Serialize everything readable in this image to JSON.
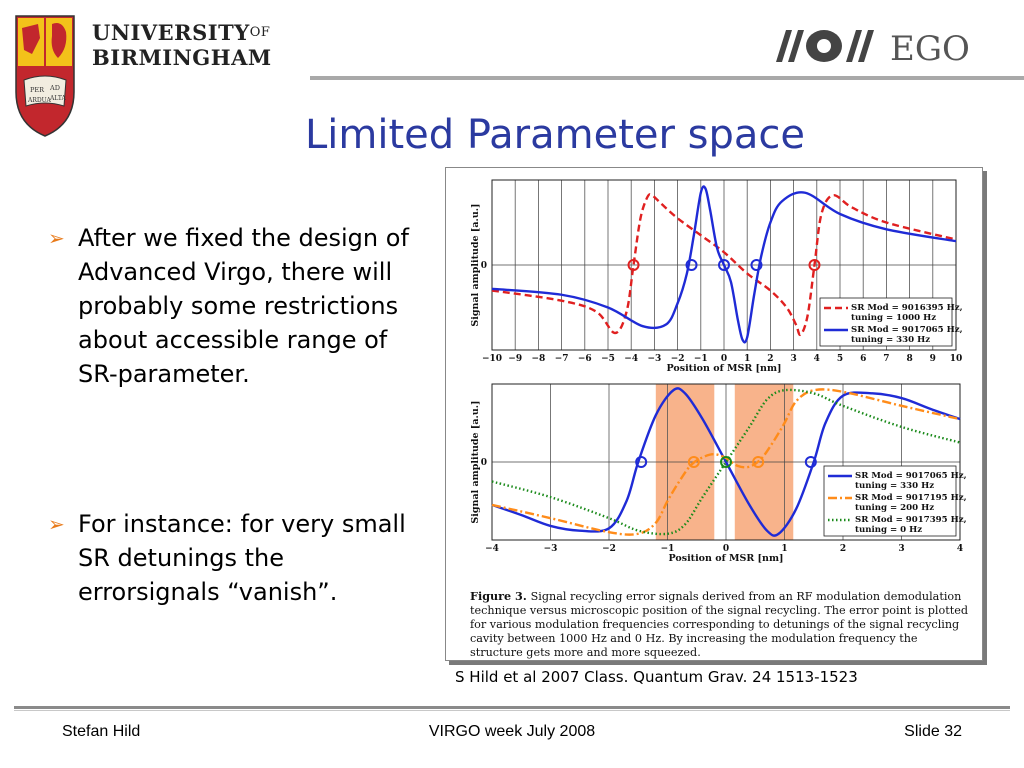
{
  "header": {
    "university_line1": "UNIVERSITY",
    "university_of": "OF",
    "university_line2": "BIRMINGHAM",
    "crest_motto": "PER ARDUA AD ALTA",
    "ego_logo": "EGO"
  },
  "title": "Limited Parameter space",
  "bullets": [
    {
      "text": "After we fixed the design of Advanced Virgo, there will probably some restrictions about accessible range of SR-parameter."
    },
    {
      "text": "For instance: for very small SR detunings the errorsignals “vanish”."
    }
  ],
  "citation": "S Hild et al 2007 Class. Quantum Grav. 24 1513-1523",
  "footer": {
    "left": "Stefan Hild",
    "center": "VIRGO week July 2008",
    "right": "Slide 32"
  },
  "figure_caption": {
    "label": "Figure 3.",
    "text": "Signal recycling error signals derived from an RF modulation demodulation technique versus microscopic position of the signal recycling. The error point is plotted for various modulation frequencies corresponding to detunings of the signal recycling cavity between 1000 Hz and 0 Hz. By increasing the modulation frequency the structure gets more and more squeezed."
  },
  "colors": {
    "title": "#2b3aa0",
    "bullet_marker": "#e87a1a",
    "blue": "#1f2bd6",
    "red": "#e02020",
    "orange": "#ff8c1a",
    "green": "#1a8a1a",
    "band": "#f7a677"
  },
  "chart_data": [
    {
      "type": "line",
      "xlabel": "Position of MSR [nm]",
      "ylabel": "Signal amplitude [a.u.]",
      "xlim": [
        -10,
        10
      ],
      "xticks": [
        -10,
        -9,
        -8,
        -7,
        -6,
        -5,
        -4,
        -3,
        -2,
        -1,
        0,
        1,
        2,
        3,
        4,
        5,
        6,
        7,
        8,
        9,
        10
      ],
      "yticks": [
        0
      ],
      "ylim": [
        -1,
        1
      ],
      "grid": "vertical",
      "legend": "bottom-right",
      "series": [
        {
          "name": "SR Mod = 9016395 Hz, tuning = 1000 Hz",
          "color": "#e02020",
          "dash": "dashed",
          "x": [
            -10,
            -7,
            -5.5,
            -4.7,
            -4.2,
            -3.9,
            -3.6,
            -3.3,
            -3.1,
            -2.7,
            -2,
            -1,
            0,
            1,
            2,
            2.7,
            3.1,
            3.3,
            3.6,
            3.9,
            4.2,
            4.7,
            5.5,
            7,
            10
          ],
          "y": [
            -0.3,
            -0.42,
            -0.55,
            -0.8,
            -0.55,
            0,
            0.55,
            0.8,
            0.82,
            0.72,
            0.55,
            0.35,
            0.15,
            -0.1,
            -0.3,
            -0.5,
            -0.7,
            -0.82,
            -0.6,
            0,
            0.6,
            0.82,
            0.68,
            0.5,
            0.3
          ],
          "markers_x": [
            -3.9,
            3.9
          ]
        },
        {
          "name": "SR Mod = 9017065 Hz, tuning = 330 Hz",
          "color": "#1f2bd6",
          "dash": "solid",
          "x": [
            -10,
            -7,
            -5,
            -3.5,
            -2.5,
            -2,
            -1.6,
            -1.3,
            -1,
            -0.8,
            -0.6,
            -0.3,
            0,
            0.3,
            0.6,
            0.8,
            1,
            1.3,
            1.6,
            2,
            2.5,
            3.5,
            5,
            7,
            10
          ],
          "y": [
            -0.28,
            -0.35,
            -0.5,
            -0.72,
            -0.7,
            -0.45,
            -0.1,
            0.35,
            0.85,
            0.9,
            0.65,
            0.2,
            0,
            -0.2,
            -0.65,
            -0.88,
            -0.85,
            -0.35,
            0.1,
            0.5,
            0.75,
            0.85,
            0.6,
            0.42,
            0.28
          ],
          "markers_x": [
            -1.4,
            0,
            1.4
          ]
        }
      ]
    },
    {
      "type": "line",
      "xlabel": "Position of MSR [nm]",
      "ylabel": "Signal amplitude [a.u.]",
      "xlim": [
        -4,
        4
      ],
      "xticks": [
        -4,
        -3,
        -2,
        -1,
        0,
        1,
        2,
        3,
        4
      ],
      "yticks": [
        0
      ],
      "ylim": [
        -1,
        1
      ],
      "grid": "vertical",
      "legend": "bottom-right",
      "shaded_ranges_x": [
        [
          -1.2,
          -0.2
        ],
        [
          0.15,
          1.15
        ]
      ],
      "series": [
        {
          "name": "SR Mod = 9017065 Hz, tuning = 330 Hz",
          "color": "#1f2bd6",
          "dash": "solid",
          "x": [
            -4,
            -3.5,
            -3,
            -2.5,
            -2,
            -1.7,
            -1.5,
            -1.2,
            -0.9,
            -0.7,
            -0.4,
            0,
            0.4,
            0.7,
            0.9,
            1.2,
            1.5,
            1.7,
            2,
            2.5,
            3,
            3.5,
            4
          ],
          "y": [
            -0.55,
            -0.68,
            -0.82,
            -0.88,
            -0.85,
            -0.5,
            0,
            0.6,
            0.92,
            0.88,
            0.55,
            0,
            -0.55,
            -0.88,
            -0.92,
            -0.6,
            0,
            0.5,
            0.85,
            0.88,
            0.82,
            0.68,
            0.55
          ],
          "markers_x": [
            -1.45,
            1.45
          ]
        },
        {
          "name": "SR Mod = 9017195 Hz, tuning = 200 Hz",
          "color": "#ff8c1a",
          "dash": "dashdot",
          "x": [
            -4,
            -3,
            -2,
            -1.5,
            -1.2,
            -1,
            -0.8,
            -0.6,
            -0.4,
            -0.2,
            0,
            0.2,
            0.4,
            0.6,
            0.8,
            1,
            1.2,
            1.5,
            2,
            3,
            4
          ],
          "y": [
            -0.55,
            -0.72,
            -0.9,
            -0.92,
            -0.78,
            -0.5,
            -0.25,
            -0.04,
            0.06,
            0.1,
            0.05,
            -0.05,
            -0.06,
            0.04,
            0.25,
            0.5,
            0.78,
            0.92,
            0.9,
            0.72,
            0.55
          ],
          "markers_x": [
            -0.55,
            0.55
          ]
        },
        {
          "name": "SR Mod = 9017395 Hz, tuning = 0 Hz",
          "color": "#1a8a1a",
          "dash": "dotted",
          "x": [
            -4,
            -3,
            -2,
            -1.5,
            -1,
            -0.7,
            -0.4,
            0,
            0.4,
            0.7,
            1,
            1.5,
            2,
            3,
            4
          ],
          "y": [
            -0.25,
            -0.45,
            -0.72,
            -0.88,
            -0.92,
            -0.8,
            -0.45,
            0,
            0.45,
            0.8,
            0.92,
            0.88,
            0.72,
            0.45,
            0.25
          ],
          "markers_x": [
            0
          ]
        }
      ]
    }
  ]
}
